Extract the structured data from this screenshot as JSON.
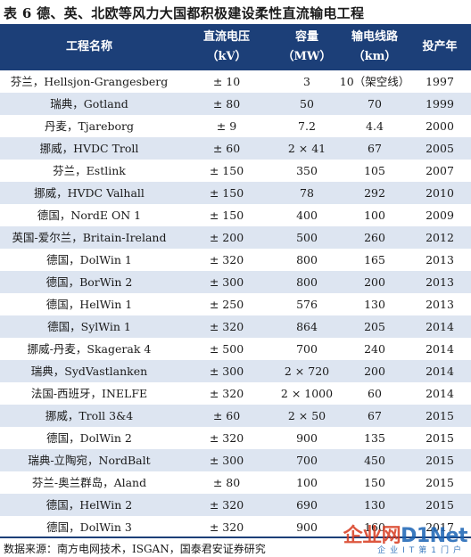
{
  "title": "表 6 德、英、北欧等风力大国都积极建设柔性直流输电工程",
  "header": {
    "project_name": "工程名称",
    "voltage": "直流电压",
    "voltage_unit": "（kV）",
    "capacity": "容量",
    "capacity_unit": "（MW）",
    "line": "输电线路",
    "line_unit": "（km）",
    "year": "投产年"
  },
  "rows": [
    {
      "name": "芬兰，Hellsjon-Grangesberg",
      "voltage": "± 10",
      "capacity": "3",
      "line": "10（架空线）",
      "year": "1997"
    },
    {
      "name": "瑞典，Gotland",
      "voltage": "± 80",
      "capacity": "50",
      "line": "70",
      "year": "1999"
    },
    {
      "name": "丹麦，Tjareborg",
      "voltage": "± 9",
      "capacity": "7.2",
      "line": "4.4",
      "year": "2000"
    },
    {
      "name": "挪威，HVDC Troll",
      "voltage": "± 60",
      "capacity": "2 × 41",
      "line": "67",
      "year": "2005"
    },
    {
      "name": "芬兰，Estlink",
      "voltage": "± 150",
      "capacity": "350",
      "line": "105",
      "year": "2007"
    },
    {
      "name": "挪威，HVDC Valhall",
      "voltage": "± 150",
      "capacity": "78",
      "line": "292",
      "year": "2010"
    },
    {
      "name": "德国，NordE ON 1",
      "voltage": "± 150",
      "capacity": "400",
      "line": "100",
      "year": "2009"
    },
    {
      "name": "英国-爱尔兰，Britain-Ireland",
      "voltage": "± 200",
      "capacity": "500",
      "line": "260",
      "year": "2012"
    },
    {
      "name": "德国，DolWin 1",
      "voltage": "± 320",
      "capacity": "800",
      "line": "165",
      "year": "2013"
    },
    {
      "name": "德国，BorWin 2",
      "voltage": "± 300",
      "capacity": "800",
      "line": "200",
      "year": "2013"
    },
    {
      "name": "德国，HelWin 1",
      "voltage": "± 250",
      "capacity": "576",
      "line": "130",
      "year": "2013"
    },
    {
      "name": "德国，SylWin 1",
      "voltage": "± 320",
      "capacity": "864",
      "line": "205",
      "year": "2014"
    },
    {
      "name": "挪威-丹麦，Skagerak 4",
      "voltage": "± 500",
      "capacity": "700",
      "line": "240",
      "year": "2014"
    },
    {
      "name": "瑞典，SydVastlanken",
      "voltage": "± 300",
      "capacity": "2 × 720",
      "line": "200",
      "year": "2014"
    },
    {
      "name": "法国-西班牙，INELFE",
      "voltage": "± 320",
      "capacity": "2 × 1000",
      "line": "60",
      "year": "2014"
    },
    {
      "name": "挪威，Troll 3&4",
      "voltage": "± 60",
      "capacity": "2 × 50",
      "line": "67",
      "year": "2015"
    },
    {
      "name": "德国，DolWin 2",
      "voltage": "± 320",
      "capacity": "900",
      "line": "135",
      "year": "2015"
    },
    {
      "name": "瑞典-立陶宛，NordBalt",
      "voltage": "± 300",
      "capacity": "700",
      "line": "450",
      "year": "2015"
    },
    {
      "name": "芬兰-奥兰群岛，Aland",
      "voltage": "± 80",
      "capacity": "100",
      "line": "150",
      "year": "2015"
    },
    {
      "name": "德国，HelWin 2",
      "voltage": "± 320",
      "capacity": "690",
      "line": "130",
      "year": "2015"
    },
    {
      "name": "德国，DolWin 3",
      "voltage": "± 320",
      "capacity": "900",
      "line": "160",
      "year": "2017"
    }
  ],
  "source": "数据来源：南方电网技术，ISGAN，国泰君安证券研究",
  "watermark": {
    "main": "企业网",
    "brand": "D1Net",
    "sub": "企业IT第1门户"
  }
}
